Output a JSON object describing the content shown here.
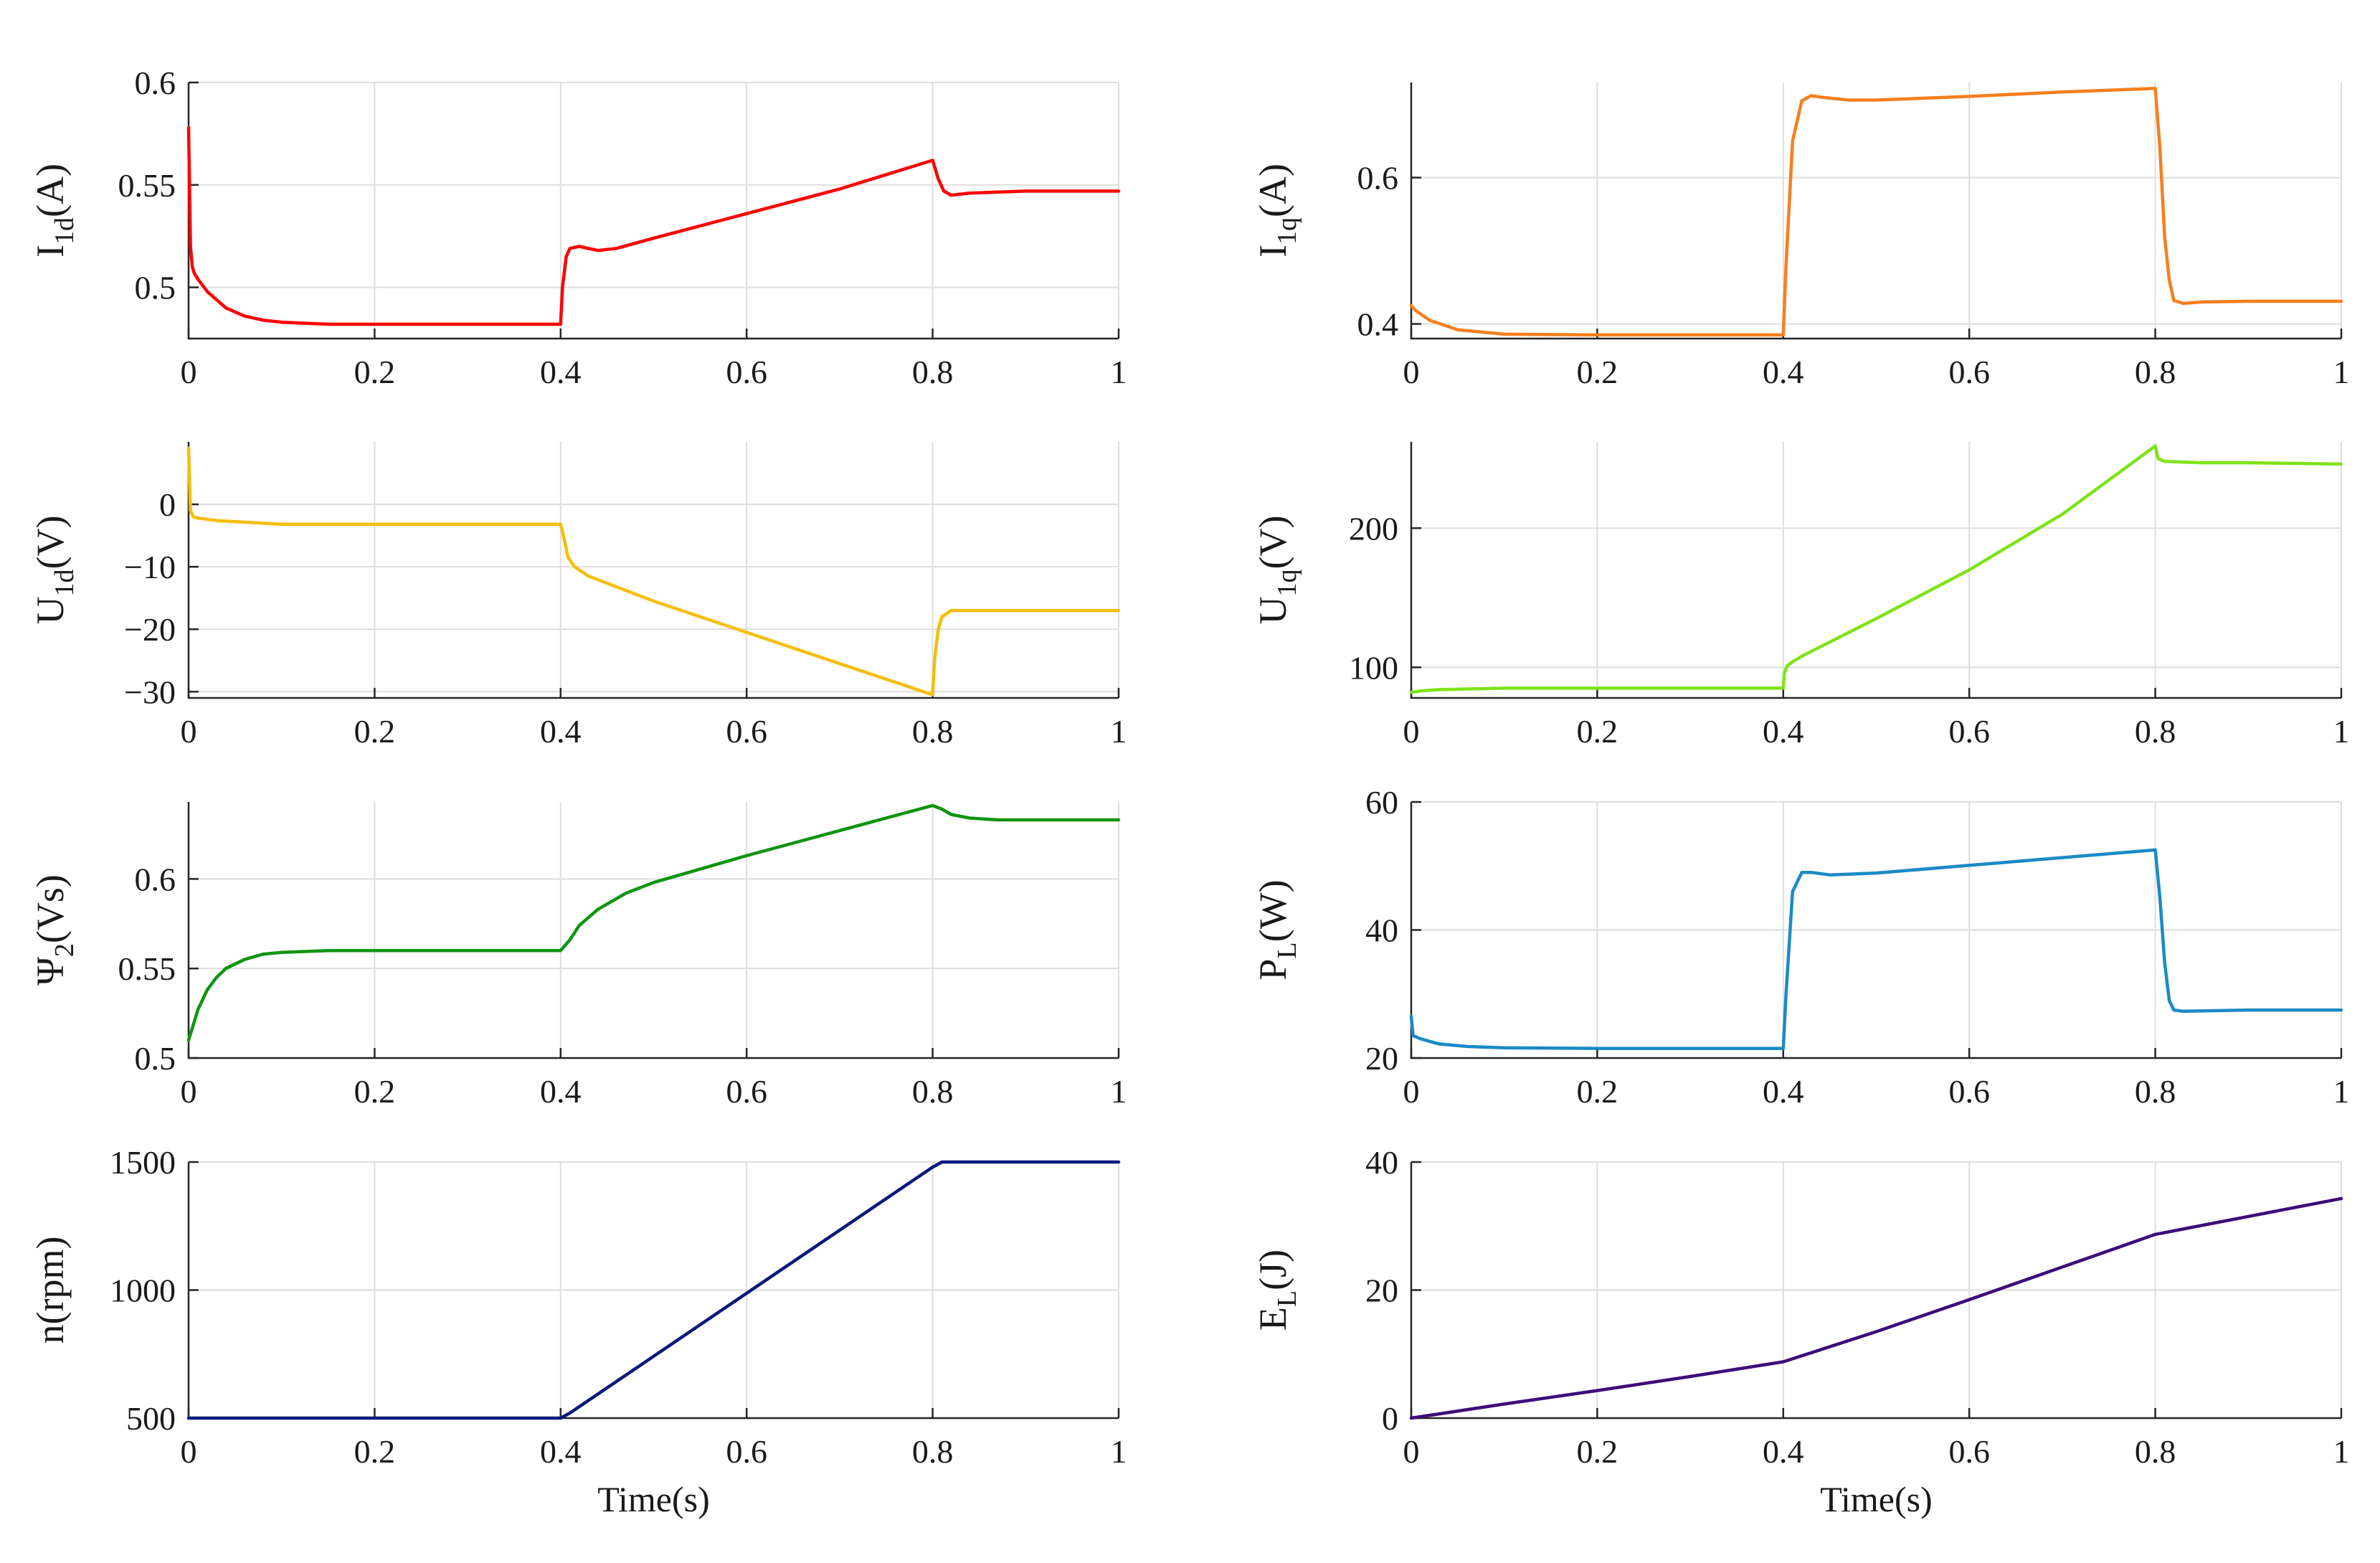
{
  "chart_data": [
    {
      "type": "line",
      "ylabel_main": "I",
      "ylabel_sub": "1d",
      "ylabel_suffix": "(A)",
      "xlim": [
        0,
        1
      ],
      "ylim": [
        0.475,
        0.6
      ],
      "xticks": [
        0,
        0.2,
        0.4,
        0.6,
        0.8,
        1
      ],
      "yticks": [
        0.5,
        0.55,
        0.6
      ],
      "grid": true,
      "color": "#ff0000",
      "series": [
        {
          "name": "I1d",
          "x": [
            0,
            0.002,
            0.004,
            0.006,
            0.01,
            0.02,
            0.04,
            0.06,
            0.08,
            0.1,
            0.15,
            0.2,
            0.3,
            0.4,
            0.402,
            0.406,
            0.41,
            0.42,
            0.44,
            0.46,
            0.5,
            0.6,
            0.7,
            0.8,
            0.806,
            0.812,
            0.82,
            0.84,
            0.9,
            1.0
          ],
          "y": [
            0.578,
            0.52,
            0.51,
            0.507,
            0.504,
            0.498,
            0.49,
            0.486,
            0.484,
            0.483,
            0.482,
            0.482,
            0.482,
            0.482,
            0.5,
            0.515,
            0.519,
            0.52,
            0.518,
            0.519,
            0.524,
            0.536,
            0.548,
            0.562,
            0.553,
            0.547,
            0.545,
            0.546,
            0.547,
            0.547
          ]
        }
      ]
    },
    {
      "type": "line",
      "ylabel_main": "I",
      "ylabel_sub": "1q",
      "ylabel_suffix": "(A)",
      "xlim": [
        0,
        1
      ],
      "ylim": [
        0.38,
        0.73
      ],
      "xticks": [
        0,
        0.2,
        0.4,
        0.6,
        0.8,
        1
      ],
      "yticks": [
        0.4,
        0.6
      ],
      "grid": true,
      "color": "#f77f1f",
      "series": [
        {
          "name": "I1q",
          "x": [
            0,
            0.005,
            0.02,
            0.05,
            0.1,
            0.2,
            0.3,
            0.4,
            0.403,
            0.41,
            0.42,
            0.43,
            0.44,
            0.47,
            0.5,
            0.6,
            0.7,
            0.8,
            0.805,
            0.81,
            0.815,
            0.82,
            0.83,
            0.85,
            0.9,
            1.0
          ],
          "y": [
            0.425,
            0.418,
            0.405,
            0.392,
            0.386,
            0.385,
            0.385,
            0.385,
            0.48,
            0.65,
            0.705,
            0.712,
            0.71,
            0.706,
            0.706,
            0.711,
            0.717,
            0.722,
            0.64,
            0.52,
            0.46,
            0.432,
            0.428,
            0.43,
            0.431,
            0.431
          ]
        }
      ]
    },
    {
      "type": "line",
      "ylabel_main": "U",
      "ylabel_sub": "1d",
      "ylabel_suffix": "(V)",
      "xlim": [
        0,
        1
      ],
      "ylim": [
        -31,
        10
      ],
      "xticks": [
        0,
        0.2,
        0.4,
        0.6,
        0.8,
        1
      ],
      "yticks": [
        0,
        -10,
        -20,
        -30
      ],
      "yticklabels": [
        "0",
        "−10",
        "−20",
        "−30"
      ],
      "grid": true,
      "color": "#f5be0b",
      "series": [
        {
          "name": "U1d",
          "x": [
            0,
            0.002,
            0.005,
            0.01,
            0.03,
            0.1,
            0.2,
            0.3,
            0.4,
            0.403,
            0.408,
            0.415,
            0.43,
            0.5,
            0.6,
            0.7,
            0.8,
            0.802,
            0.806,
            0.81,
            0.82,
            0.9,
            1.0
          ],
          "y": [
            9,
            -1,
            -2,
            -2.2,
            -2.6,
            -3.2,
            -3.2,
            -3.2,
            -3.2,
            -5,
            -8.5,
            -10,
            -11.5,
            -15.5,
            -20.5,
            -25.5,
            -30.5,
            -25,
            -20,
            -18,
            -17,
            -17,
            -17
          ]
        }
      ]
    },
    {
      "type": "line",
      "ylabel_main": "U",
      "ylabel_sub": "1q",
      "ylabel_suffix": "(V)",
      "xlim": [
        0,
        1
      ],
      "ylim": [
        78,
        262
      ],
      "xticks": [
        0,
        0.2,
        0.4,
        0.6,
        0.8,
        1
      ],
      "yticks": [
        100,
        200
      ],
      "grid": true,
      "color": "#7fe31a",
      "series": [
        {
          "name": "U1q",
          "x": [
            0,
            0.01,
            0.03,
            0.1,
            0.2,
            0.3,
            0.4,
            0.401,
            0.404,
            0.41,
            0.42,
            0.5,
            0.6,
            0.7,
            0.8,
            0.803,
            0.81,
            0.85,
            0.9,
            1.0
          ],
          "y": [
            82,
            83,
            84,
            85,
            85,
            85,
            85,
            95,
            101,
            104,
            108,
            135,
            170,
            210,
            259,
            250,
            248,
            247,
            247,
            246
          ]
        }
      ]
    },
    {
      "type": "line",
      "ylabel_main": "Ψ",
      "ylabel_sub": "2",
      "ylabel_suffix": "(Vs)",
      "xlim": [
        0,
        1
      ],
      "ylim": [
        0.5,
        0.643
      ],
      "xticks": [
        0,
        0.2,
        0.4,
        0.6,
        0.8,
        1
      ],
      "yticks": [
        0.5,
        0.55,
        0.6
      ],
      "grid": true,
      "color": "#119411",
      "series": [
        {
          "name": "Psi2",
          "x": [
            0,
            0.01,
            0.02,
            0.03,
            0.04,
            0.06,
            0.08,
            0.1,
            0.15,
            0.2,
            0.3,
            0.4,
            0.41,
            0.42,
            0.44,
            0.47,
            0.5,
            0.6,
            0.7,
            0.8,
            0.81,
            0.82,
            0.84,
            0.87,
            0.9,
            1.0
          ],
          "y": [
            0.51,
            0.527,
            0.538,
            0.545,
            0.55,
            0.555,
            0.558,
            0.559,
            0.56,
            0.56,
            0.56,
            0.56,
            0.566,
            0.574,
            0.583,
            0.592,
            0.598,
            0.613,
            0.627,
            0.641,
            0.639,
            0.636,
            0.634,
            0.633,
            0.633,
            0.633
          ]
        }
      ]
    },
    {
      "type": "line",
      "ylabel_main": "P",
      "ylabel_sub": "L",
      "ylabel_suffix": "(W)",
      "xlim": [
        0,
        1
      ],
      "ylim": [
        20,
        60
      ],
      "xticks": [
        0,
        0.2,
        0.4,
        0.6,
        0.8,
        1
      ],
      "yticks": [
        20,
        40,
        60
      ],
      "grid": true,
      "color": "#1a8ac6",
      "series": [
        {
          "name": "PL",
          "x": [
            0,
            0.002,
            0.01,
            0.03,
            0.06,
            0.1,
            0.2,
            0.3,
            0.4,
            0.403,
            0.41,
            0.42,
            0.43,
            0.45,
            0.5,
            0.6,
            0.7,
            0.8,
            0.805,
            0.81,
            0.815,
            0.82,
            0.83,
            0.9,
            1.0
          ],
          "y": [
            26.5,
            23.5,
            23,
            22.2,
            21.8,
            21.6,
            21.5,
            21.5,
            21.5,
            30,
            46,
            49,
            49,
            48.6,
            48.9,
            50.1,
            51.3,
            52.5,
            45,
            35,
            29,
            27.5,
            27.3,
            27.5,
            27.5
          ]
        }
      ]
    },
    {
      "type": "line",
      "ylabel_main": "n(rpm)",
      "xlim": [
        0,
        1
      ],
      "ylim": [
        500,
        1500
      ],
      "xticks": [
        0,
        0.2,
        0.4,
        0.6,
        0.8,
        1
      ],
      "yticks": [
        500,
        1000,
        1500
      ],
      "xlabel": "Time(s)",
      "grid": true,
      "color": "#0a1a7a",
      "series": [
        {
          "name": "n",
          "x": [
            0,
            0.4,
            0.41,
            0.8,
            0.81,
            1.0
          ],
          "y": [
            500,
            500,
            520,
            1480,
            1500,
            1500
          ]
        }
      ]
    },
    {
      "type": "line",
      "ylabel_main": "E",
      "ylabel_sub": "L",
      "ylabel_suffix": "(J)",
      "xlim": [
        0,
        1
      ],
      "ylim": [
        0,
        40
      ],
      "xticks": [
        0,
        0.2,
        0.4,
        0.6,
        0.8,
        1
      ],
      "yticks": [
        0,
        20,
        40
      ],
      "xlabel": "Time(s)",
      "grid": true,
      "color": "#3d0c7a",
      "series": [
        {
          "name": "EL",
          "x": [
            0,
            0.1,
            0.2,
            0.3,
            0.4,
            0.5,
            0.6,
            0.7,
            0.8,
            0.9,
            1.0
          ],
          "y": [
            0,
            2.2,
            4.3,
            6.5,
            8.8,
            13.5,
            18.5,
            23.6,
            28.7,
            31.5,
            34.3
          ]
        }
      ]
    }
  ]
}
